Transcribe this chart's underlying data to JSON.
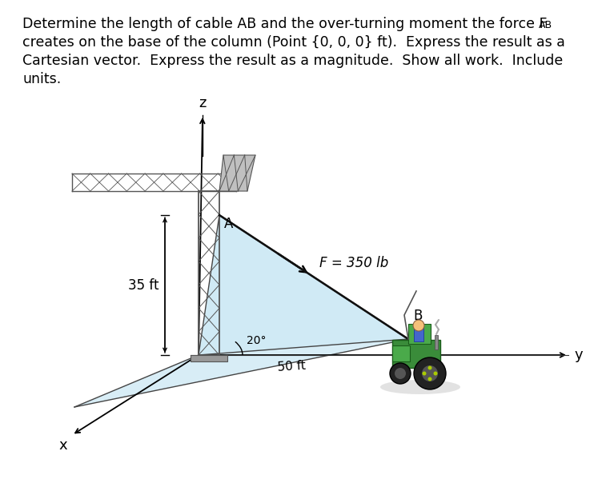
{
  "bg_color": "#ffffff",
  "text_color": "#000000",
  "title_line1_main": "Determine the length of cable AB and the over-turning moment the force F",
  "title_line1_sub": "AB",
  "title_line2": "creates on the base of the column (Point {0, 0, 0} ft).  Express the result as a",
  "title_line3": "Cartesian vector.  Express the the result as a magnitude.  Show all work.  Include",
  "title_line4": "units.",
  "title_fontsize": 12.5,
  "force_label": "F = 350 lb",
  "angle_label": "20°",
  "dist_label": "50 ft",
  "height_label": "35 ft",
  "point_A_label": "A",
  "point_B_label": "B",
  "x_label": "x",
  "y_label": "y",
  "z_label": "z",
  "triangle_fill_color": "#b8dff0",
  "cable_color": "#111111",
  "axis_color": "#000000",
  "lattice_color": "#555555",
  "dim_color": "#000000",
  "shadow_color": "#d0d0d0",
  "tractor_green": "#3a8c3a",
  "tractor_dark": "#1a5c1a",
  "wheel_color": "#222222"
}
